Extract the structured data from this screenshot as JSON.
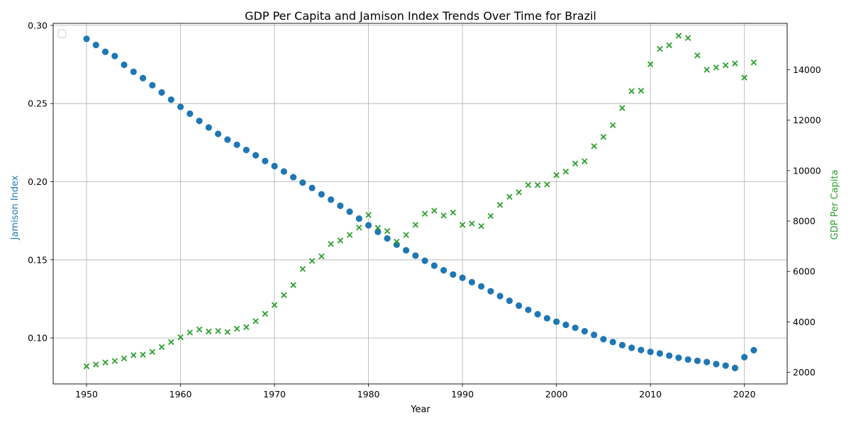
{
  "chart_data": {
    "type": "scatter",
    "title": "GDP Per Capita and Jamison Index Trends Over Time for Brazil",
    "xlabel": "Year",
    "ylabel_left": "Jamison Index",
    "ylabel_right": "GDP Per Capita",
    "xlim": [
      1946.45,
      2024.55
    ],
    "ylim_left": [
      0.0706,
      0.3013
    ],
    "ylim_right": [
      1540,
      15840
    ],
    "xticks": [
      1950,
      1960,
      1970,
      1980,
      1990,
      2000,
      2010,
      2020
    ],
    "yticks_left": [
      "0.10",
      "0.15",
      "0.20",
      "0.25",
      "0.30"
    ],
    "yticks_left_values": [
      0.1,
      0.15,
      0.2,
      0.25,
      0.3
    ],
    "yticks_right": [
      2000,
      4000,
      6000,
      8000,
      10000,
      12000,
      14000
    ],
    "grid": true,
    "legend": "top-left (empty)",
    "x": [
      1950,
      1951,
      1952,
      1953,
      1954,
      1955,
      1956,
      1957,
      1958,
      1959,
      1960,
      1961,
      1962,
      1963,
      1964,
      1965,
      1966,
      1967,
      1968,
      1969,
      1970,
      1971,
      1972,
      1973,
      1974,
      1975,
      1976,
      1977,
      1978,
      1979,
      1980,
      1981,
      1982,
      1983,
      1984,
      1985,
      1986,
      1987,
      1988,
      1989,
      1990,
      1991,
      1992,
      1993,
      1994,
      1995,
      1996,
      1997,
      1998,
      1999,
      2000,
      2001,
      2002,
      2003,
      2004,
      2005,
      2006,
      2007,
      2008,
      2009,
      2010,
      2011,
      2012,
      2013,
      2014,
      2015,
      2016,
      2017,
      2018,
      2019,
      2020,
      2021
    ],
    "series": [
      {
        "name": "Jamison Index",
        "axis": "left",
        "marker": "circle",
        "color": "#1f77b4",
        "values": [
          0.2914,
          0.2875,
          0.2831,
          0.2804,
          0.2748,
          0.2703,
          0.2663,
          0.2617,
          0.2571,
          0.2525,
          0.2479,
          0.2435,
          0.2389,
          0.2347,
          0.2306,
          0.2269,
          0.2236,
          0.2203,
          0.2169,
          0.2132,
          0.21,
          0.2065,
          0.2029,
          0.1994,
          0.196,
          0.1919,
          0.1885,
          0.1846,
          0.1808,
          0.1764,
          0.1721,
          0.1679,
          0.1637,
          0.1597,
          0.1561,
          0.1527,
          0.1494,
          0.1463,
          0.1433,
          0.1406,
          0.1385,
          0.1357,
          0.133,
          0.1299,
          0.1268,
          0.1238,
          0.1207,
          0.118,
          0.1152,
          0.1126,
          0.1104,
          0.1084,
          0.1065,
          0.1043,
          0.102,
          0.0992,
          0.0974,
          0.0954,
          0.0937,
          0.0923,
          0.0911,
          0.0901,
          0.0887,
          0.0873,
          0.0862,
          0.0854,
          0.0846,
          0.0833,
          0.0823,
          0.0808,
          0.0877,
          0.0922
        ]
      },
      {
        "name": "GDP Per Capita",
        "axis": "right",
        "marker": "x",
        "color": "#2ca02c",
        "values": [
          2240,
          2310,
          2390,
          2450,
          2550,
          2680,
          2700,
          2810,
          3000,
          3200,
          3390,
          3580,
          3700,
          3620,
          3640,
          3600,
          3730,
          3790,
          4030,
          4320,
          4670,
          5060,
          5460,
          6100,
          6420,
          6600,
          7090,
          7230,
          7450,
          7740,
          8240,
          7730,
          7600,
          7180,
          7450,
          7850,
          8290,
          8410,
          8220,
          8340,
          7850,
          7900,
          7800,
          8200,
          8640,
          8960,
          9140,
          9430,
          9430,
          9450,
          9820,
          9960,
          10280,
          10370,
          10970,
          11340,
          11800,
          12480,
          13150,
          13170,
          14220,
          14830,
          14970,
          15350,
          15260,
          14570,
          14000,
          14090,
          14180,
          14250,
          13690,
          14290
        ]
      }
    ]
  }
}
